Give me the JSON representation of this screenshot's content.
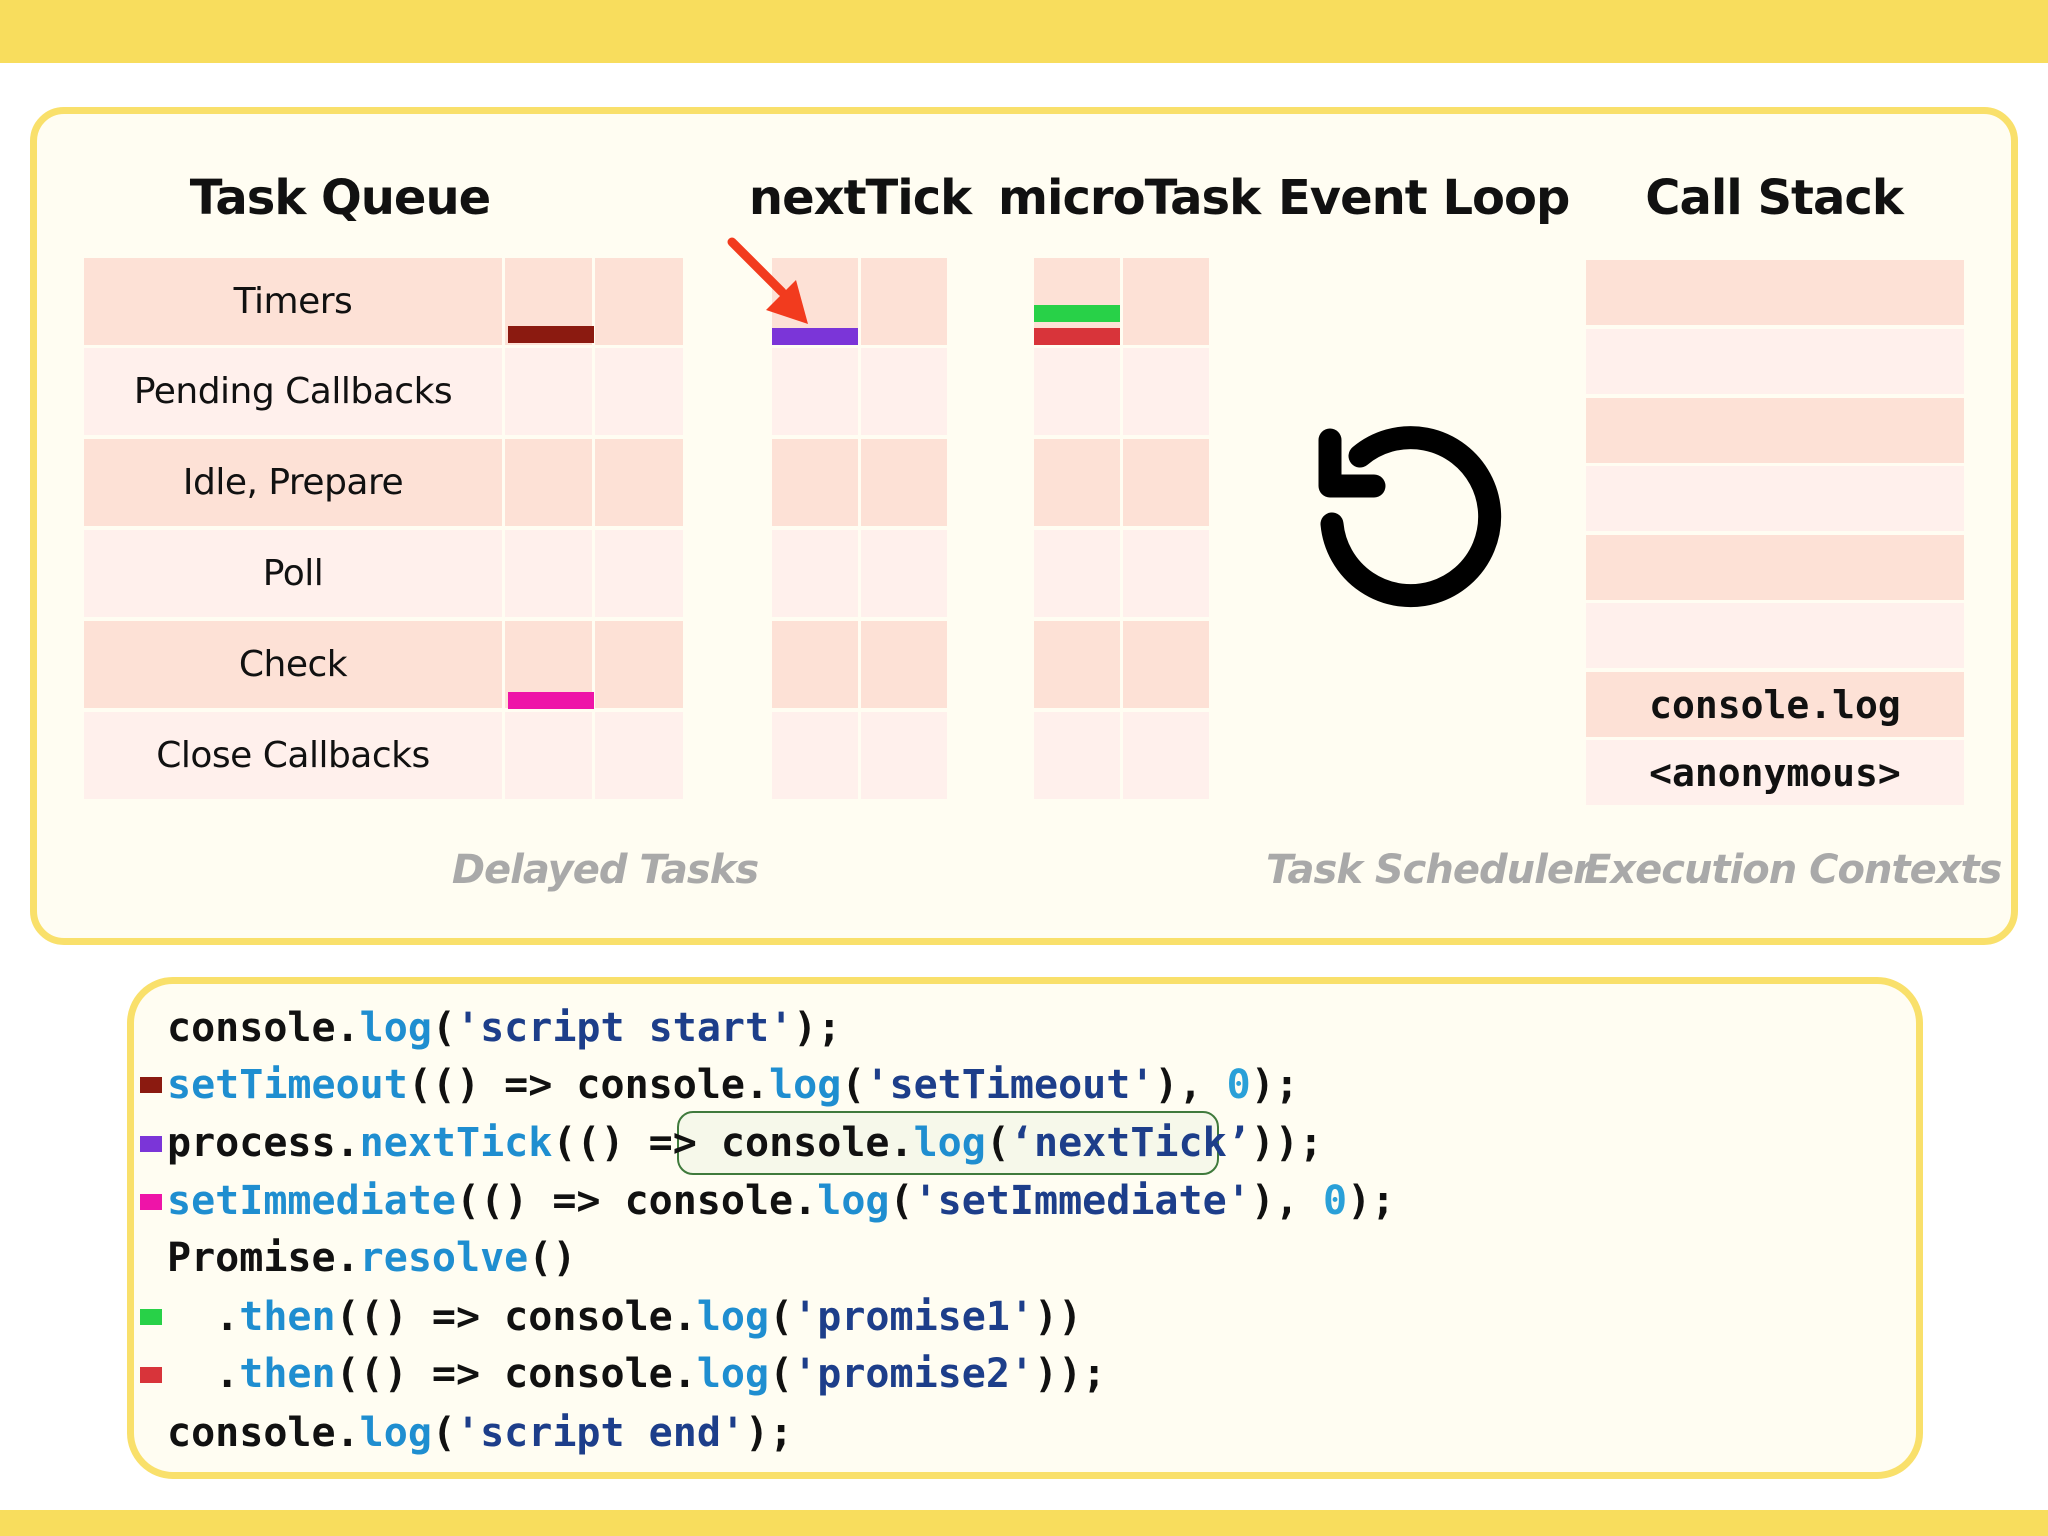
{
  "colors": {
    "band": "#f8dd5d",
    "panel_border": "#f9e06b",
    "timers_marker": "#8b1a10",
    "next_tick_marker": "#7b35d8",
    "set_immediate_marker": "#ee14a8",
    "promise1_marker": "#28d148",
    "promise2_marker": "#d8343a",
    "arrow": "#f23b1e"
  },
  "columns": {
    "task_queue": "Task Queue",
    "next_tick": "nextTick",
    "micro_task": "microTask",
    "event_loop": "Event Loop",
    "call_stack": "Call Stack"
  },
  "task_queue_phases": [
    "Timers",
    "Pending Callbacks",
    "Idle, Prepare",
    "Poll",
    "Check",
    "Close Callbacks"
  ],
  "call_stack_items": [
    "console.log",
    "<anonymous>"
  ],
  "footer_labels": {
    "delayed": "Delayed Tasks",
    "scheduler": "Task Scheduler",
    "contexts": "Execution Contexts"
  },
  "icons": {
    "event_loop": "circular-arrow-icon",
    "pointer": "red-arrow-icon"
  },
  "code": {
    "l1": [
      "console",
      ".",
      "log",
      "(",
      "'script start'",
      ");"
    ],
    "l2": [
      "setTimeout",
      "(() => ",
      "console",
      ".",
      "log",
      "(",
      "'setTimeout'",
      "), ",
      "0",
      ");"
    ],
    "l3": [
      "process",
      ".",
      "nextTick",
      "(() => ",
      "console",
      ".",
      "log",
      "(",
      "‘nextTick’",
      ")",
      ");"
    ],
    "l4": [
      "setImmediate",
      "(() => ",
      "console",
      ".",
      "log",
      "(",
      "'setImmediate'",
      "), ",
      "0",
      ");"
    ],
    "l5": [
      "Promise",
      ".",
      "resolve",
      "()"
    ],
    "l6": [
      "  .",
      "then",
      "(() => ",
      "console",
      ".",
      "log",
      "(",
      "'promise1'",
      "))"
    ],
    "l7": [
      "  .",
      "then",
      "(() => ",
      "console",
      ".",
      "log",
      "(",
      "'promise2'",
      "));"
    ],
    "l8": [
      "console",
      ".",
      "log",
      "(",
      "'script end'",
      ");"
    ]
  }
}
